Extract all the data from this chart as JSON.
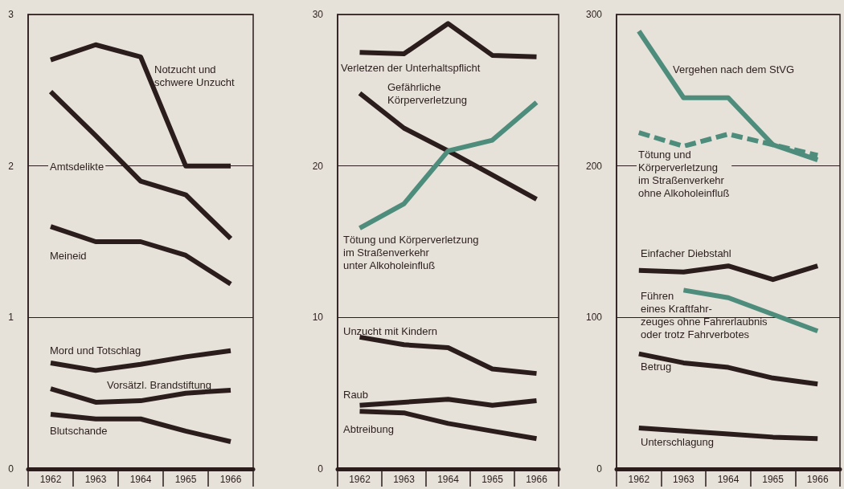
{
  "chart_data": [
    {
      "type": "line",
      "categories": [
        "1962",
        "1963",
        "1964",
        "1965",
        "1966"
      ],
      "ylim": [
        0,
        3
      ],
      "yticks": [
        0,
        1,
        2,
        3
      ],
      "grid": "y",
      "legend": false,
      "marker": "none",
      "series": [
        {
          "name": "Notzucht und\nschwere Unzucht",
          "color": "#2b1d1c",
          "values": [
            2.7,
            2.8,
            2.72,
            2.0,
            2.0
          ]
        },
        {
          "name": "Amtsdelikte",
          "color": "#2b1d1c",
          "values": [
            2.49,
            2.2,
            1.9,
            1.81,
            1.52
          ]
        },
        {
          "name": "Meineid",
          "color": "#2b1d1c",
          "values": [
            1.6,
            1.5,
            1.5,
            1.41,
            1.22
          ]
        },
        {
          "name": "Mord und Totschlag",
          "color": "#2b1d1c",
          "values": [
            0.7,
            0.65,
            0.69,
            0.74,
            0.78
          ]
        },
        {
          "name": "Vorsätzl. Brandstiftung",
          "color": "#2b1d1c",
          "values": [
            0.53,
            0.44,
            0.45,
            0.5,
            0.52
          ]
        },
        {
          "name": "Blutschande",
          "color": "#2b1d1c",
          "values": [
            0.36,
            0.33,
            0.33,
            0.25,
            0.18
          ]
        }
      ]
    },
    {
      "type": "line",
      "categories": [
        "1962",
        "1963",
        "1964",
        "1965",
        "1966"
      ],
      "ylim": [
        0,
        30
      ],
      "yticks": [
        0,
        10,
        20,
        30
      ],
      "grid": "y",
      "legend": false,
      "marker": "none",
      "series": [
        {
          "name": "Verletzen der Unterhaltspflicht",
          "color": "#2b1d1c",
          "values": [
            27.5,
            27.4,
            29.4,
            27.3,
            27.2
          ]
        },
        {
          "name": "Gefährliche\nKörperverletzung",
          "color": "#2b1d1c",
          "values": [
            24.8,
            22.5,
            21.0,
            19.4,
            17.8
          ]
        },
        {
          "name": "Tötung und Körperverletzung\nim Straßenverkehr\nunter Alkoholeinfluß",
          "color": "#4e8c7c",
          "values": [
            15.9,
            17.5,
            21.0,
            21.7,
            24.2
          ]
        },
        {
          "name": "Unzucht mit Kindern",
          "color": "#2b1d1c",
          "values": [
            8.7,
            8.2,
            8.0,
            6.6,
            6.3
          ]
        },
        {
          "name": "Raub",
          "color": "#2b1d1c",
          "values": [
            4.2,
            4.4,
            4.6,
            4.2,
            4.5
          ]
        },
        {
          "name": "Abtreibung",
          "color": "#2b1d1c",
          "values": [
            3.8,
            3.7,
            3.0,
            2.5,
            2.0
          ]
        }
      ]
    },
    {
      "type": "line",
      "categories": [
        "1962",
        "1963",
        "1964",
        "1965",
        "1966"
      ],
      "ylim": [
        0,
        300
      ],
      "yticks": [
        0,
        100,
        200,
        300
      ],
      "grid": "y",
      "legend": false,
      "marker": "none",
      "series": [
        {
          "name": "Vergehen nach dem StVG",
          "color": "#4e8c7c",
          "values": [
            289,
            245,
            245,
            214,
            204
          ]
        },
        {
          "name": "Tötung und\nKörperverletzung\nim Straßenverkehr\nohne Alkoholeinfluß",
          "color": "#4e8c7c",
          "line_style": "dashed",
          "values": [
            222,
            213,
            221,
            214,
            207
          ]
        },
        {
          "name": "Einfacher Diebstahl",
          "color": "#2b1d1c",
          "values": [
            131,
            130,
            134,
            125,
            134
          ]
        },
        {
          "name": "Führen\neines Kraftfahr-\nzeuges ohne Fahrerlaubnis\noder trotz Fahrverbotes",
          "color": "#4e8c7c",
          "values": [
            null,
            118,
            113,
            102,
            91
          ]
        },
        {
          "name": "Betrug",
          "color": "#2b1d1c",
          "values": [
            76,
            70,
            67,
            60,
            56
          ]
        },
        {
          "name": "Unterschlagung",
          "color": "#2b1d1c",
          "values": [
            27,
            25,
            23,
            21,
            20
          ]
        }
      ]
    }
  ]
}
